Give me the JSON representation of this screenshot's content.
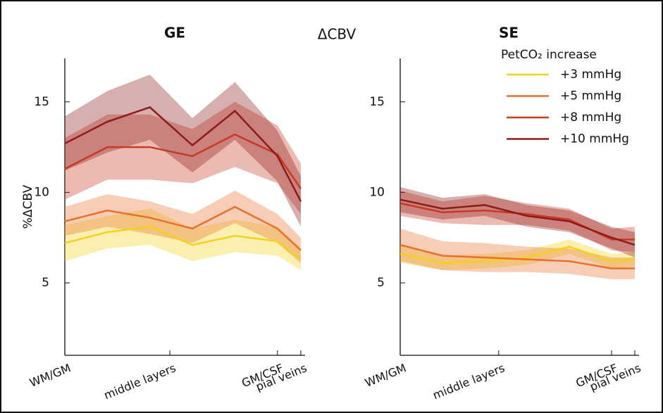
{
  "title": "ΔCBV",
  "chart_data": [
    {
      "type": "line",
      "title": "GE",
      "ylabel": "%ΔCBV",
      "x": [
        0,
        1,
        2,
        3,
        4,
        5,
        5.55
      ],
      "xlim": [
        0,
        5.65
      ],
      "xticks": [
        {
          "value": 0,
          "label": "WM/GM"
        },
        {
          "value": 2.47,
          "label": "middle layers"
        },
        {
          "value": 5,
          "label": "GM/CSF"
        },
        {
          "value": 5.55,
          "label": "pial veins"
        }
      ],
      "ylim": [
        1,
        17.4
      ],
      "yticks": [
        5,
        10,
        15
      ],
      "series": [
        {
          "color": "#f2d21b",
          "values": [
            7.2,
            7.8,
            8.1,
            7.1,
            7.6,
            7.3,
            6.3
          ],
          "error": [
            1.0,
            0.9,
            1.0,
            0.9,
            0.9,
            0.8,
            0.6
          ]
        },
        {
          "color": "#e8702a",
          "values": [
            8.4,
            9.0,
            8.6,
            8.0,
            9.2,
            8.0,
            6.8
          ],
          "error": [
            0.8,
            0.9,
            0.9,
            0.8,
            0.9,
            0.8,
            0.7
          ]
        },
        {
          "color": "#c73a22",
          "values": [
            11.3,
            12.5,
            12.5,
            12.0,
            13.2,
            12.1,
            10.2
          ],
          "error": [
            1.7,
            1.8,
            1.8,
            1.5,
            1.8,
            1.6,
            1.4
          ]
        },
        {
          "color": "#8e1b1b",
          "values": [
            12.7,
            13.9,
            14.7,
            12.6,
            14.5,
            12.0,
            9.5
          ],
          "error": [
            1.5,
            1.7,
            1.8,
            1.5,
            1.6,
            1.4,
            1.4
          ]
        }
      ]
    },
    {
      "type": "line",
      "title": "SE",
      "legend_title": "PetCO₂ increase",
      "legend": "upper right",
      "x": [
        0,
        1,
        2,
        3,
        4,
        5,
        5.55
      ],
      "xlim": [
        0,
        5.65
      ],
      "xticks": [
        {
          "value": 0,
          "label": "WM/GM"
        },
        {
          "value": 2.33,
          "label": "middle layers"
        },
        {
          "value": 5,
          "label": "GM/CSF"
        },
        {
          "value": 5.55,
          "label": "pial veins"
        }
      ],
      "ylim": [
        1,
        17.4
      ],
      "yticks": [
        5,
        10,
        15
      ],
      "series": [
        {
          "name": "+3 mmHg",
          "color": "#f2d21b",
          "values": [
            6.6,
            6.1,
            6.2,
            6.4,
            7.0,
            6.2,
            6.3
          ],
          "error": [
            0.5,
            0.4,
            0.4,
            0.4,
            0.4,
            0.4,
            0.4
          ]
        },
        {
          "name": "+5 mmHg",
          "color": "#e8702a",
          "values": [
            7.1,
            6.5,
            6.4,
            6.3,
            6.2,
            5.8,
            5.8
          ],
          "error": [
            0.9,
            0.8,
            0.8,
            0.7,
            0.7,
            0.6,
            0.6
          ]
        },
        {
          "name": "+8 mmHg",
          "color": "#c73a22",
          "values": [
            9.4,
            8.9,
            9.0,
            8.8,
            8.5,
            7.4,
            7.4
          ],
          "error": [
            0.7,
            0.6,
            0.8,
            0.6,
            0.6,
            0.6,
            0.7
          ]
        },
        {
          "name": "+10 mmHg",
          "color": "#8e1b1b",
          "values": [
            9.6,
            9.1,
            9.3,
            8.7,
            8.4,
            7.5,
            7.1
          ],
          "error": [
            0.7,
            0.6,
            0.6,
            0.6,
            0.6,
            0.6,
            0.7
          ]
        }
      ]
    }
  ]
}
